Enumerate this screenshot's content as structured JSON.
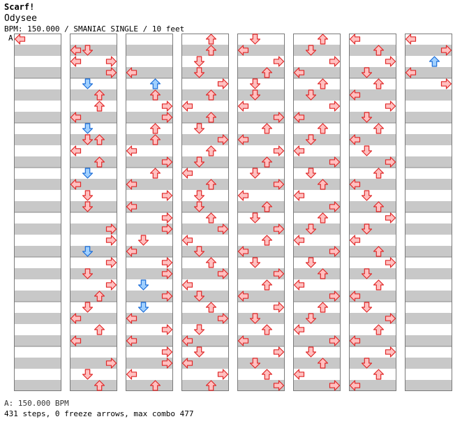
{
  "song_title": "Scarf!",
  "song_subtitle": "Odysee",
  "info_line": "BPM: 150.000 / SMANIAC SINGLE / 10 feet",
  "section_marker": "A",
  "footer": {
    "bpm_line": "A: 150.000 BPM",
    "stats_line": "431 steps, 0 freeze arrows, max combo 477"
  },
  "colors": {
    "quarter_fill": "#ffc0c0",
    "quarter_stroke": "#e02828",
    "eighth_fill": "#a0d0ff",
    "eighth_stroke": "#1a6cd8",
    "sixteenth_fill": "#ffc0ff",
    "sixteenth_stroke": "#c83cc8",
    "stripe": "#c8c8c8"
  },
  "icons": [
    "left-arrow-icon",
    "down-arrow-icon",
    "up-arrow-icon",
    "right-arrow-icon"
  ],
  "columns": [
    [
      [
        0,
        0,
        "q"
      ]
    ],
    [
      [
        1,
        0,
        "q"
      ],
      [
        1,
        1,
        "q"
      ],
      [
        2,
        0,
        "q"
      ],
      [
        2,
        3,
        "q"
      ],
      [
        3,
        3,
        "q"
      ],
      [
        4,
        1,
        "e"
      ],
      [
        5,
        2,
        "q"
      ],
      [
        6,
        2,
        "q"
      ],
      [
        7,
        0,
        "q"
      ],
      [
        8,
        1,
        "e"
      ],
      [
        9,
        1,
        "q"
      ],
      [
        9,
        2,
        "q"
      ],
      [
        10,
        0,
        "q"
      ],
      [
        11,
        2,
        "q"
      ],
      [
        12,
        1,
        "e"
      ],
      [
        13,
        0,
        "q"
      ],
      [
        14,
        1,
        "q"
      ],
      [
        15,
        1,
        "q"
      ],
      [
        17,
        3,
        "q"
      ],
      [
        18,
        3,
        "q"
      ],
      [
        19,
        1,
        "e"
      ],
      [
        20,
        3,
        "q"
      ],
      [
        21,
        1,
        "q"
      ],
      [
        22,
        3,
        "q"
      ],
      [
        23,
        2,
        "q"
      ],
      [
        24,
        1,
        "q"
      ],
      [
        25,
        0,
        "q"
      ],
      [
        26,
        2,
        "q"
      ],
      [
        27,
        0,
        "q"
      ],
      [
        29,
        3,
        "q"
      ],
      [
        30,
        1,
        "q"
      ],
      [
        31,
        2,
        "q"
      ]
    ],
    [
      [
        3,
        0,
        "q"
      ],
      [
        4,
        2,
        "e"
      ],
      [
        5,
        2,
        "q"
      ],
      [
        6,
        3,
        "q"
      ],
      [
        7,
        3,
        "q"
      ],
      [
        8,
        2,
        "q"
      ],
      [
        9,
        2,
        "q"
      ],
      [
        10,
        0,
        "q"
      ],
      [
        11,
        3,
        "q"
      ],
      [
        12,
        2,
        "q"
      ],
      [
        13,
        0,
        "q"
      ],
      [
        14,
        3,
        "q"
      ],
      [
        15,
        0,
        "q"
      ],
      [
        16,
        3,
        "q"
      ],
      [
        17,
        3,
        "q"
      ],
      [
        18,
        1,
        "q"
      ],
      [
        19,
        0,
        "q"
      ],
      [
        20,
        3,
        "q"
      ],
      [
        21,
        3,
        "q"
      ],
      [
        22,
        1,
        "e"
      ],
      [
        23,
        3,
        "q"
      ],
      [
        24,
        1,
        "e"
      ],
      [
        25,
        0,
        "q"
      ],
      [
        26,
        3,
        "q"
      ],
      [
        27,
        0,
        "q"
      ],
      [
        28,
        3,
        "q"
      ],
      [
        29,
        3,
        "q"
      ],
      [
        30,
        0,
        "q"
      ],
      [
        31,
        2,
        "q"
      ]
    ],
    [
      [
        0,
        2,
        "q"
      ],
      [
        1,
        2,
        "q"
      ],
      [
        2,
        1,
        "q"
      ],
      [
        3,
        1,
        "q"
      ],
      [
        4,
        3,
        "q"
      ],
      [
        5,
        2,
        "q"
      ],
      [
        6,
        0,
        "q"
      ],
      [
        7,
        2,
        "q"
      ],
      [
        8,
        1,
        "q"
      ],
      [
        9,
        3,
        "q"
      ],
      [
        10,
        2,
        "q"
      ],
      [
        11,
        1,
        "q"
      ],
      [
        12,
        0,
        "q"
      ],
      [
        13,
        2,
        "q"
      ],
      [
        14,
        1,
        "q"
      ],
      [
        15,
        1,
        "q"
      ],
      [
        16,
        2,
        "q"
      ],
      [
        17,
        3,
        "q"
      ],
      [
        18,
        0,
        "q"
      ],
      [
        19,
        1,
        "q"
      ],
      [
        20,
        2,
        "q"
      ],
      [
        21,
        3,
        "q"
      ],
      [
        22,
        0,
        "q"
      ],
      [
        23,
        1,
        "q"
      ],
      [
        24,
        2,
        "q"
      ],
      [
        25,
        3,
        "q"
      ],
      [
        26,
        1,
        "q"
      ],
      [
        27,
        0,
        "q"
      ],
      [
        28,
        1,
        "q"
      ],
      [
        29,
        0,
        "q"
      ],
      [
        30,
        3,
        "q"
      ],
      [
        31,
        2,
        "q"
      ]
    ],
    [
      [
        0,
        1,
        "q"
      ],
      [
        1,
        0,
        "q"
      ],
      [
        2,
        3,
        "q"
      ],
      [
        3,
        2,
        "q"
      ],
      [
        4,
        1,
        "q"
      ],
      [
        5,
        1,
        "q"
      ],
      [
        6,
        0,
        "q"
      ],
      [
        7,
        3,
        "q"
      ],
      [
        8,
        2,
        "q"
      ],
      [
        9,
        0,
        "q"
      ],
      [
        10,
        3,
        "q"
      ],
      [
        11,
        2,
        "q"
      ],
      [
        12,
        1,
        "q"
      ],
      [
        13,
        3,
        "q"
      ],
      [
        14,
        0,
        "q"
      ],
      [
        15,
        2,
        "q"
      ],
      [
        16,
        1,
        "q"
      ],
      [
        17,
        3,
        "q"
      ],
      [
        18,
        2,
        "q"
      ],
      [
        19,
        0,
        "q"
      ],
      [
        20,
        1,
        "q"
      ],
      [
        21,
        3,
        "q"
      ],
      [
        22,
        2,
        "q"
      ],
      [
        23,
        0,
        "q"
      ],
      [
        24,
        3,
        "q"
      ],
      [
        25,
        1,
        "q"
      ],
      [
        26,
        2,
        "q"
      ],
      [
        27,
        0,
        "q"
      ],
      [
        28,
        3,
        "q"
      ],
      [
        29,
        1,
        "q"
      ],
      [
        30,
        2,
        "q"
      ],
      [
        31,
        3,
        "q"
      ]
    ],
    [
      [
        0,
        2,
        "q"
      ],
      [
        1,
        1,
        "q"
      ],
      [
        2,
        3,
        "q"
      ],
      [
        3,
        0,
        "q"
      ],
      [
        4,
        2,
        "q"
      ],
      [
        5,
        1,
        "q"
      ],
      [
        6,
        3,
        "q"
      ],
      [
        7,
        0,
        "q"
      ],
      [
        8,
        2,
        "q"
      ],
      [
        9,
        1,
        "q"
      ],
      [
        10,
        0,
        "q"
      ],
      [
        11,
        3,
        "q"
      ],
      [
        12,
        1,
        "q"
      ],
      [
        13,
        2,
        "q"
      ],
      [
        14,
        0,
        "q"
      ],
      [
        15,
        3,
        "q"
      ],
      [
        16,
        2,
        "q"
      ],
      [
        17,
        1,
        "q"
      ],
      [
        18,
        0,
        "q"
      ],
      [
        19,
        3,
        "q"
      ],
      [
        20,
        1,
        "q"
      ],
      [
        21,
        2,
        "q"
      ],
      [
        22,
        0,
        "q"
      ],
      [
        23,
        3,
        "q"
      ],
      [
        24,
        2,
        "q"
      ],
      [
        25,
        1,
        "q"
      ],
      [
        26,
        0,
        "q"
      ],
      [
        27,
        3,
        "q"
      ],
      [
        28,
        1,
        "q"
      ],
      [
        29,
        2,
        "q"
      ],
      [
        30,
        0,
        "q"
      ],
      [
        31,
        3,
        "q"
      ]
    ],
    [
      [
        0,
        0,
        "q"
      ],
      [
        1,
        2,
        "q"
      ],
      [
        2,
        3,
        "q"
      ],
      [
        3,
        1,
        "q"
      ],
      [
        4,
        2,
        "q"
      ],
      [
        5,
        0,
        "q"
      ],
      [
        6,
        3,
        "q"
      ],
      [
        7,
        1,
        "q"
      ],
      [
        8,
        2,
        "q"
      ],
      [
        9,
        0,
        "q"
      ],
      [
        10,
        1,
        "q"
      ],
      [
        11,
        3,
        "q"
      ],
      [
        12,
        2,
        "q"
      ],
      [
        13,
        0,
        "q"
      ],
      [
        14,
        1,
        "q"
      ],
      [
        15,
        2,
        "q"
      ],
      [
        16,
        3,
        "q"
      ],
      [
        17,
        1,
        "q"
      ],
      [
        18,
        0,
        "q"
      ],
      [
        19,
        2,
        "q"
      ],
      [
        20,
        3,
        "q"
      ],
      [
        21,
        1,
        "q"
      ],
      [
        22,
        2,
        "q"
      ],
      [
        23,
        0,
        "q"
      ],
      [
        24,
        1,
        "q"
      ],
      [
        25,
        3,
        "q"
      ],
      [
        26,
        2,
        "q"
      ],
      [
        27,
        0,
        "q"
      ],
      [
        28,
        3,
        "q"
      ],
      [
        29,
        1,
        "q"
      ],
      [
        30,
        2,
        "q"
      ],
      [
        31,
        0,
        "q"
      ]
    ],
    [
      [
        0,
        0,
        "q"
      ],
      [
        1,
        3,
        "q"
      ],
      [
        2,
        2,
        "e"
      ],
      [
        3,
        0,
        "q"
      ],
      [
        4,
        3,
        "q"
      ]
    ]
  ]
}
